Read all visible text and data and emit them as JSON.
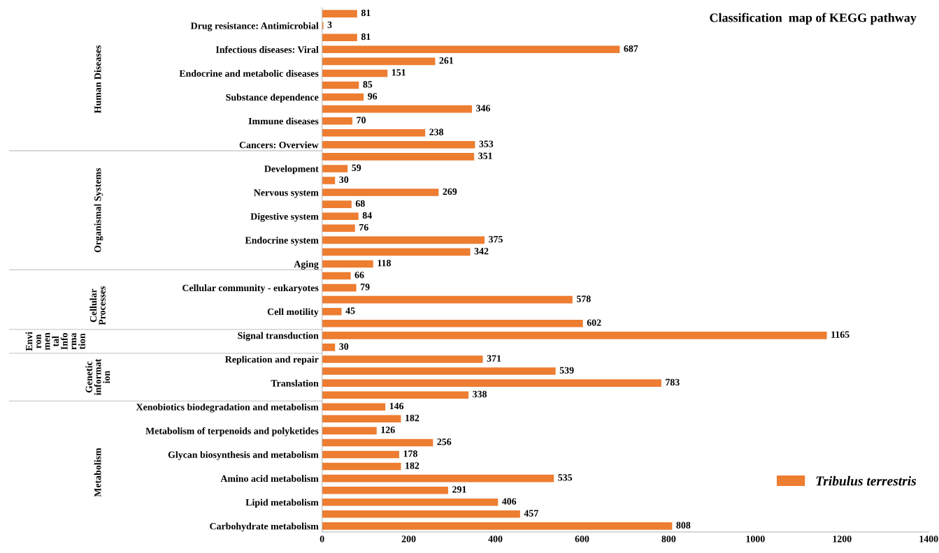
{
  "chart_data": {
    "type": "bar",
    "orientation": "horizontal",
    "title": "Classification  map of KEGG pathway",
    "categories": [
      null,
      "Drug resistance: Antimicrobial",
      null,
      "Infectious diseases: Viral",
      null,
      "Endocrine and metabolic diseases",
      null,
      "Substance dependence",
      null,
      "Immune diseases",
      null,
      "Cancers: Overview",
      null,
      "Development",
      null,
      "Nervous system",
      null,
      "Digestive system",
      null,
      "Endocrine system",
      null,
      "Aging",
      null,
      "Cellular community - eukaryotes",
      null,
      "Cell motility",
      null,
      "Signal transduction",
      null,
      "Replication and repair",
      null,
      "Translation",
      null,
      "Xenobiotics biodegradation and metabolism",
      null,
      "Metabolism of terpenoids and polyketides",
      null,
      "Glycan biosynthesis and metabolism",
      null,
      "Amino acid metabolism",
      null,
      "Lipid metabolism",
      null,
      "Carbohydrate metabolism"
    ],
    "series": [
      {
        "name": "Tribulus terrestris",
        "color": "#ed7d31",
        "values": [
          81,
          3,
          81,
          687,
          261,
          151,
          85,
          96,
          346,
          70,
          238,
          353,
          351,
          59,
          30,
          269,
          68,
          84,
          76,
          375,
          342,
          118,
          66,
          79,
          578,
          45,
          602,
          1165,
          30,
          371,
          539,
          783,
          338,
          146,
          182,
          126,
          256,
          178,
          182,
          535,
          291,
          406,
          457,
          808
        ]
      }
    ],
    "xlim": [
      0,
      1400
    ],
    "xticks": [
      0,
      200,
      400,
      600,
      800,
      1000,
      1200,
      1400
    ],
    "grid": false,
    "legend": "bottom right",
    "data_labels": true,
    "annotations": [
      "Human Diseases",
      "Organismal Systems",
      "Cellular\nProcesses",
      "Envi\nron\nmen\ntal\nInfo\nrma\ntion",
      "Genetic\ninformat\nion",
      "Metabolism"
    ]
  }
}
